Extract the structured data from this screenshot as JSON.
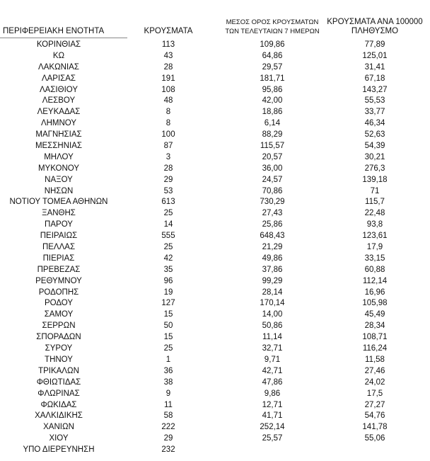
{
  "headers": {
    "region": "ΠΕΡΙΦΕΡΕΙΑΚΗ ΕΝΟΤΗΤΑ",
    "cases": "ΚΡΟΥΣΜΑΤΑ",
    "avg_line1": "ΜΕΣΟΣ ΟΡΟΣ ΚΡΟΥΣΜΑΤΩΝ",
    "avg_line2": "ΤΩΝ ΤΕΛΕΥΤΑΙΩΝ 7 ΗΜΕΡΩΝ",
    "per_line1": "ΚΡΟΥΣΜΑΤΑ ΑΝΑ 100000",
    "per_line2": "ΠΛΗΘΥΣΜΟ"
  },
  "rows": [
    {
      "region": "ΚΟΡΙΝΘΙΑΣ",
      "cases": "113",
      "avg": "109,86",
      "per": "77,89"
    },
    {
      "region": "ΚΩ",
      "cases": "43",
      "avg": "64,86",
      "per": "125,01"
    },
    {
      "region": "ΛΑΚΩΝΙΑΣ",
      "cases": "28",
      "avg": "29,57",
      "per": "31,41"
    },
    {
      "region": "ΛΑΡΙΣΑΣ",
      "cases": "191",
      "avg": "181,71",
      "per": "67,18"
    },
    {
      "region": "ΛΑΣΙΘΙΟΥ",
      "cases": "108",
      "avg": "95,86",
      "per": "143,27"
    },
    {
      "region": "ΛΕΣΒΟΥ",
      "cases": "48",
      "avg": "42,00",
      "per": "55,53"
    },
    {
      "region": "ΛΕΥΚΑΔΑΣ",
      "cases": "8",
      "avg": "18,86",
      "per": "33,77"
    },
    {
      "region": "ΛΗΜΝΟΥ",
      "cases": "8",
      "avg": "6,14",
      "per": "46,34"
    },
    {
      "region": "ΜΑΓΝΗΣΙΑΣ",
      "cases": "100",
      "avg": "88,29",
      "per": "52,63"
    },
    {
      "region": "ΜΕΣΣΗΝΙΑΣ",
      "cases": "87",
      "avg": "115,57",
      "per": "54,39"
    },
    {
      "region": "ΜΗΛΟΥ",
      "cases": "3",
      "avg": "20,57",
      "per": "30,21"
    },
    {
      "region": "ΜΥΚΟΝΟΥ",
      "cases": "28",
      "avg": "36,00",
      "per": "276,3"
    },
    {
      "region": "ΝΑΞΟΥ",
      "cases": "29",
      "avg": "24,57",
      "per": "139,18"
    },
    {
      "region": "ΝΗΣΩΝ",
      "cases": "53",
      "avg": "70,86",
      "per": "71"
    },
    {
      "region": "ΝΟΤΙΟΥ ΤΟΜΕΑ ΑΘΗΝΩΝ",
      "cases": "613",
      "avg": "730,29",
      "per": "115,7"
    },
    {
      "region": "ΞΑΝΘΗΣ",
      "cases": "25",
      "avg": "27,43",
      "per": "22,48"
    },
    {
      "region": "ΠΑΡΟΥ",
      "cases": "14",
      "avg": "25,86",
      "per": "93,8"
    },
    {
      "region": "ΠΕΙΡΑΙΩΣ",
      "cases": "555",
      "avg": "648,43",
      "per": "123,61"
    },
    {
      "region": "ΠΕΛΛΑΣ",
      "cases": "25",
      "avg": "21,29",
      "per": "17,9"
    },
    {
      "region": "ΠΙΕΡΙΑΣ",
      "cases": "42",
      "avg": "49,86",
      "per": "33,15"
    },
    {
      "region": "ΠΡΕΒΕΖΑΣ",
      "cases": "35",
      "avg": "37,86",
      "per": "60,88"
    },
    {
      "region": "ΡΕΘΥΜΝΟΥ",
      "cases": "96",
      "avg": "99,29",
      "per": "112,14"
    },
    {
      "region": "ΡΟΔΟΠΗΣ",
      "cases": "19",
      "avg": "28,14",
      "per": "16,96"
    },
    {
      "region": "ΡΟΔΟΥ",
      "cases": "127",
      "avg": "170,14",
      "per": "105,98"
    },
    {
      "region": "ΣΑΜΟΥ",
      "cases": "15",
      "avg": "14,00",
      "per": "45,49"
    },
    {
      "region": "ΣΕΡΡΩΝ",
      "cases": "50",
      "avg": "50,86",
      "per": "28,34"
    },
    {
      "region": "ΣΠΟΡΑΔΩΝ",
      "cases": "15",
      "avg": "11,14",
      "per": "108,71"
    },
    {
      "region": "ΣΥΡΟΥ",
      "cases": "25",
      "avg": "32,71",
      "per": "116,24"
    },
    {
      "region": "ΤΗΝΟΥ",
      "cases": "1",
      "avg": "9,71",
      "per": "11,58"
    },
    {
      "region": "ΤΡΙΚΑΛΩΝ",
      "cases": "36",
      "avg": "42,71",
      "per": "27,46"
    },
    {
      "region": "ΦΘΙΩΤΙΔΑΣ",
      "cases": "38",
      "avg": "47,86",
      "per": "24,02"
    },
    {
      "region": "ΦΛΩΡΙΝΑΣ",
      "cases": "9",
      "avg": "9,86",
      "per": "17,5"
    },
    {
      "region": "ΦΩΚΙΔΑΣ",
      "cases": "11",
      "avg": "12,71",
      "per": "27,27"
    },
    {
      "region": "ΧΑΛΚΙΔΙΚΗΣ",
      "cases": "58",
      "avg": "41,71",
      "per": "54,76"
    },
    {
      "region": "ΧΑΝΙΩΝ",
      "cases": "222",
      "avg": "252,14",
      "per": "141,78"
    },
    {
      "region": "ΧΙΟΥ",
      "cases": "29",
      "avg": "25,57",
      "per": "55,06"
    },
    {
      "region": "ΥΠΟ ΔΙΕΡΕΥΝΗΣΗ",
      "cases": "232",
      "avg": "",
      "per": ""
    }
  ]
}
